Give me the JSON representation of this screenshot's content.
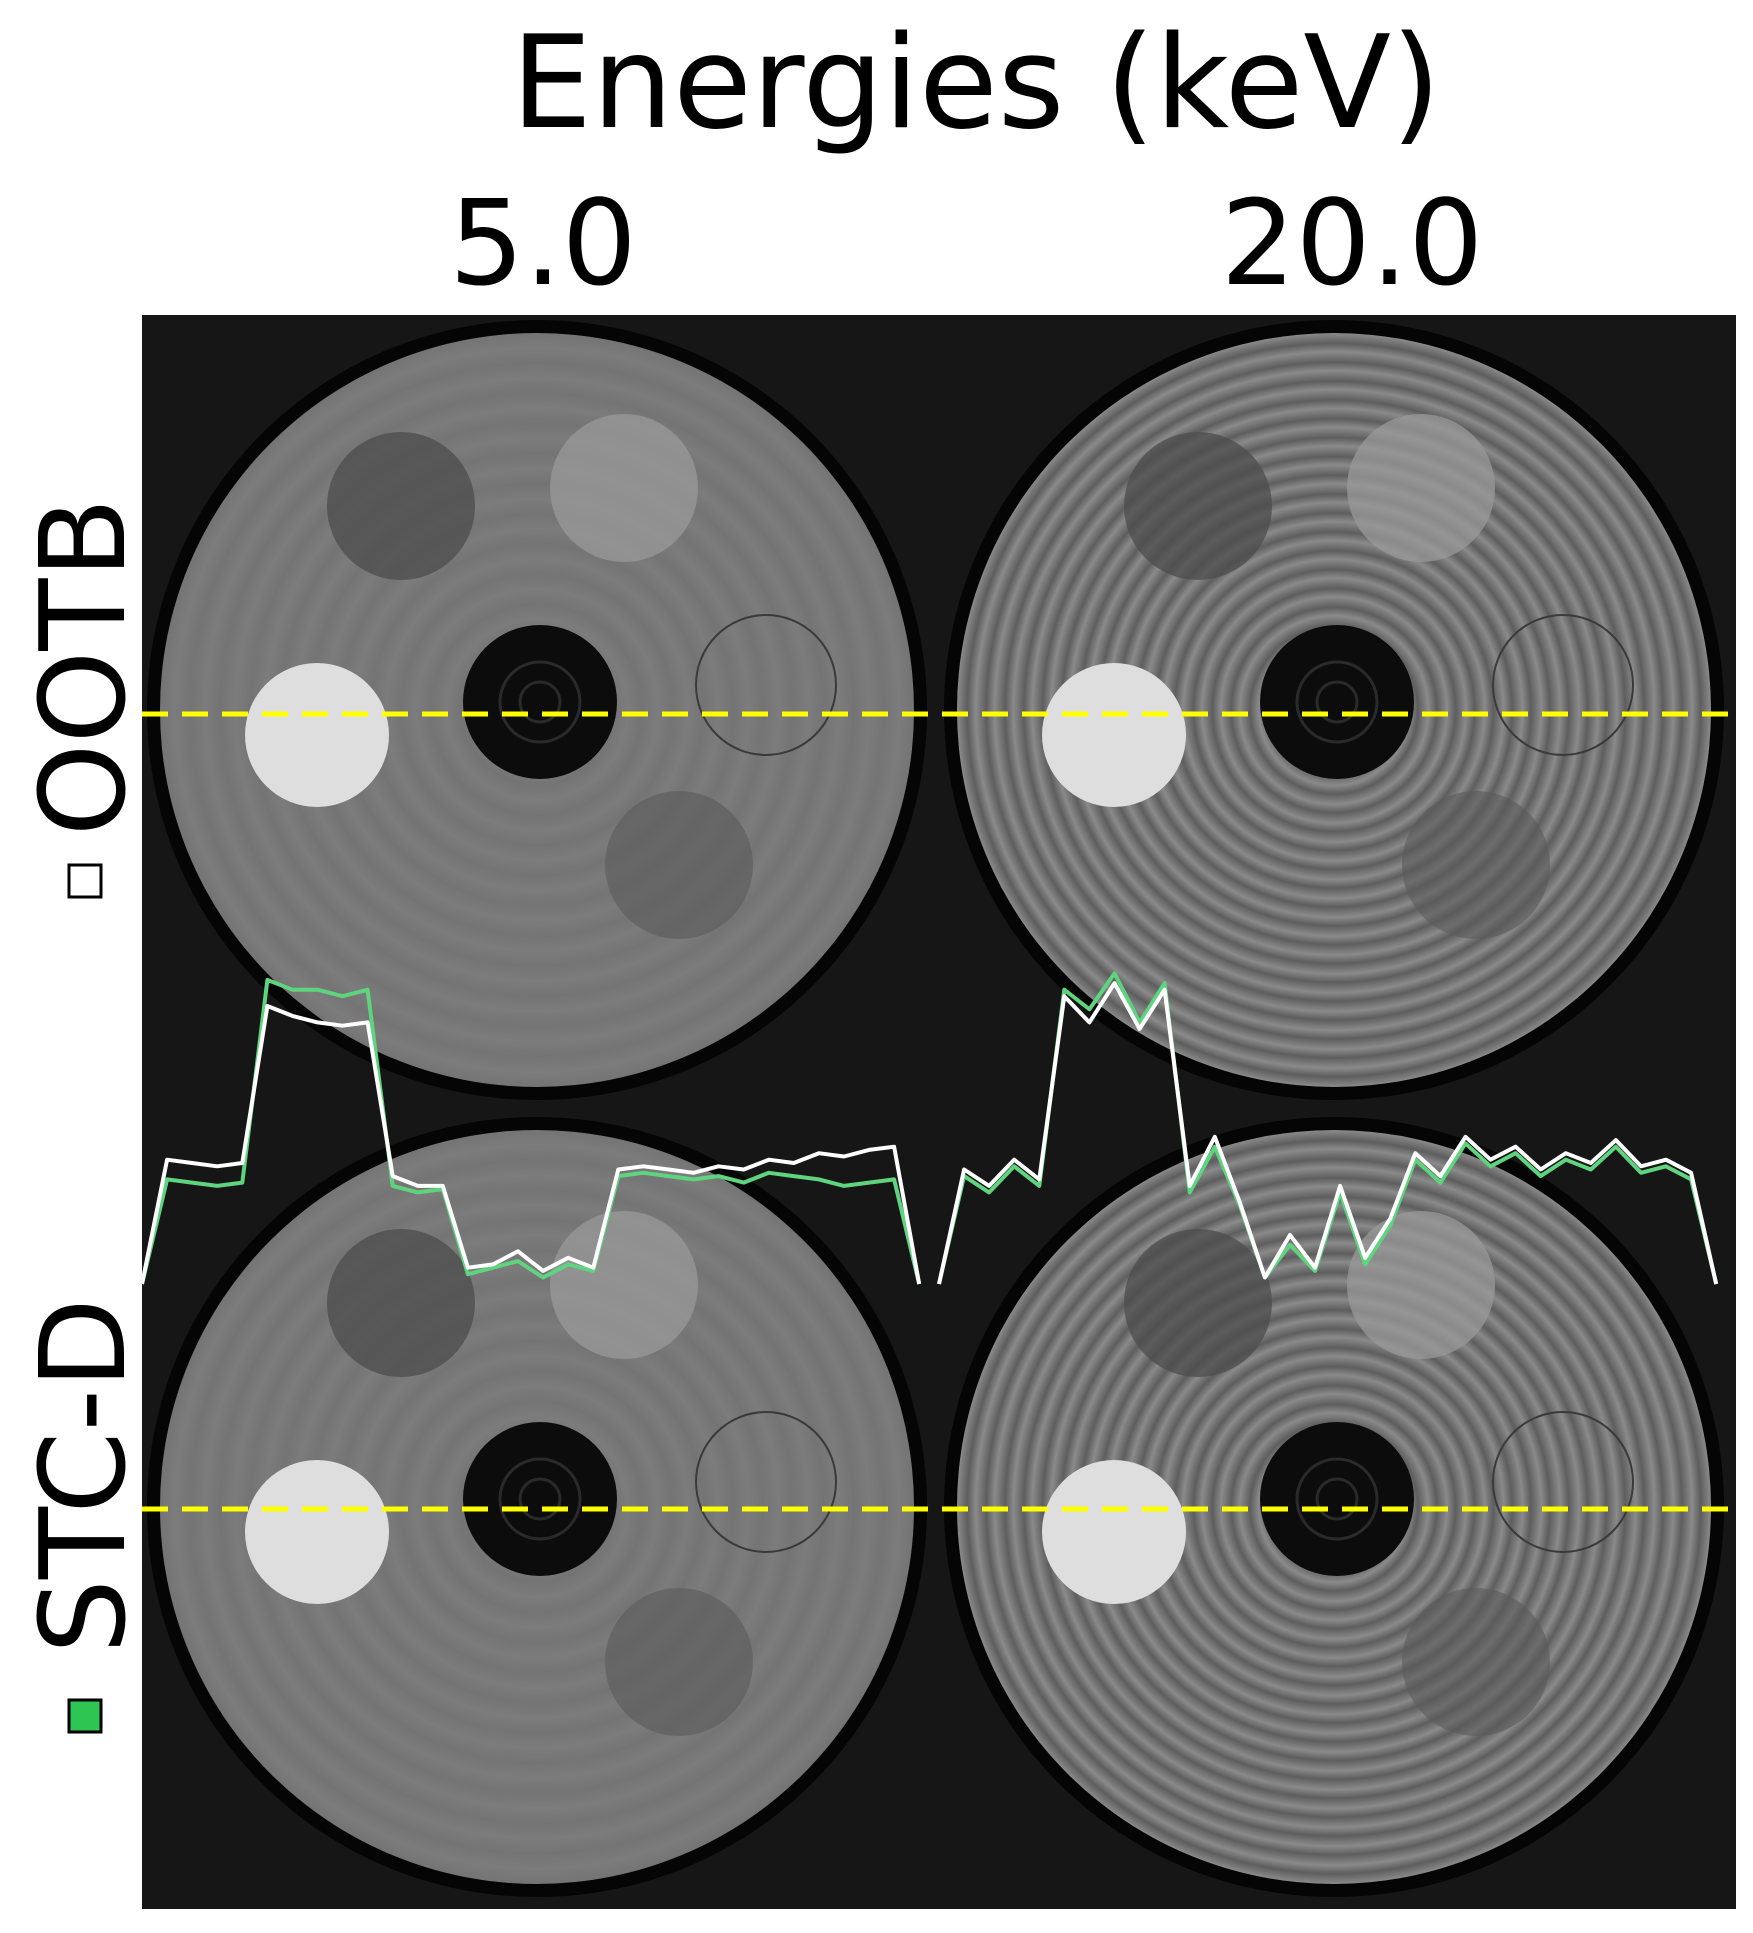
{
  "title": "Energies (keV)",
  "columns": [
    "5.0",
    "20.0"
  ],
  "rows": [
    {
      "label": "OOTB",
      "marker_color": "#ffffff"
    },
    {
      "label": "STC-D",
      "marker_color": "#2dc653"
    }
  ],
  "profile_line_color": "#ffff00",
  "profiles": [
    {
      "series": [
        {
          "color": "#5fd47f",
          "values": [
            0,
            0.32,
            0.31,
            0.3,
            0.31,
            0.93,
            0.9,
            0.9,
            0.88,
            0.9,
            0.3,
            0.28,
            0.29,
            0.03,
            0.05,
            0.07,
            0.02,
            0.06,
            0.04,
            0.33,
            0.34,
            0.33,
            0.32,
            0.33,
            0.31,
            0.34,
            0.33,
            0.32,
            0.3,
            0.31,
            0.32,
            0
          ]
        },
        {
          "color": "#ffffff",
          "values": [
            0,
            0.38,
            0.37,
            0.36,
            0.37,
            0.85,
            0.82,
            0.8,
            0.79,
            0.8,
            0.33,
            0.3,
            0.3,
            0.05,
            0.06,
            0.1,
            0.04,
            0.08,
            0.05,
            0.35,
            0.36,
            0.35,
            0.34,
            0.36,
            0.35,
            0.38,
            0.37,
            0.4,
            0.39,
            0.41,
            0.42,
            0
          ]
        }
      ]
    },
    {
      "series": [
        {
          "color": "#5fd47f",
          "values": [
            0,
            0.33,
            0.28,
            0.36,
            0.3,
            0.9,
            0.84,
            0.95,
            0.8,
            0.92,
            0.28,
            0.42,
            0.24,
            0.02,
            0.12,
            0.04,
            0.28,
            0.06,
            0.18,
            0.38,
            0.31,
            0.43,
            0.36,
            0.4,
            0.33,
            0.38,
            0.35,
            0.42,
            0.34,
            0.36,
            0.32,
            0
          ]
        },
        {
          "color": "#ffffff",
          "values": [
            0,
            0.35,
            0.3,
            0.38,
            0.32,
            0.88,
            0.8,
            0.92,
            0.78,
            0.9,
            0.3,
            0.45,
            0.25,
            0.02,
            0.15,
            0.05,
            0.3,
            0.08,
            0.2,
            0.4,
            0.33,
            0.45,
            0.38,
            0.42,
            0.35,
            0.4,
            0.37,
            0.44,
            0.36,
            0.38,
            0.34,
            0
          ]
        }
      ]
    }
  ]
}
